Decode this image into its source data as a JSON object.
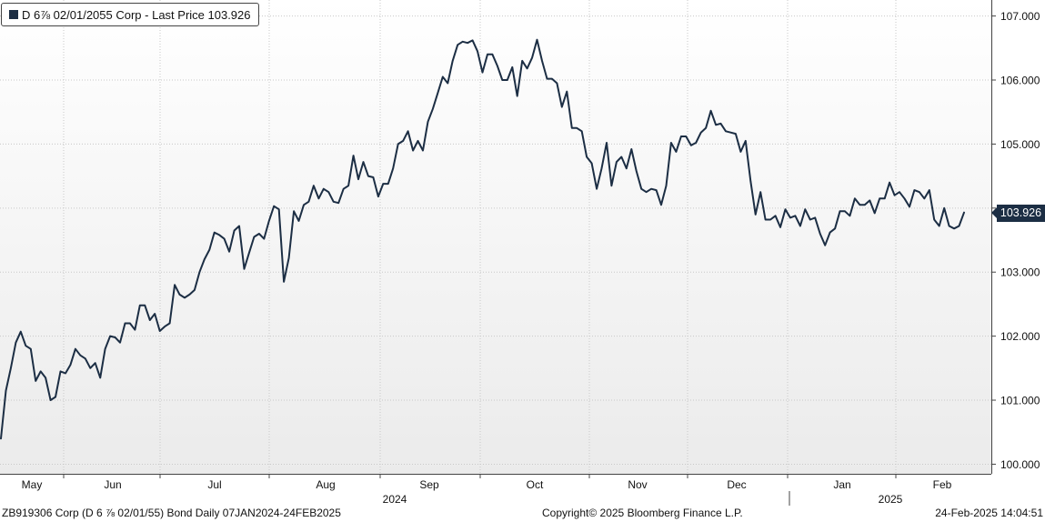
{
  "legend": {
    "text": "D 6⅞ 02/01/2055 Corp - Last Price 103.926",
    "color": "#1c2e44"
  },
  "footer": {
    "left": "ZB919306 Corp (D 6 ⅞ 02/01/55) Bond  Daily 07JAN2024-24FEB2025",
    "center": "Copyright© 2025 Bloomberg Finance L.P.",
    "right": "24-Feb-2025 14:04:51"
  },
  "chart_data": {
    "type": "line",
    "title": "",
    "xlabel": "",
    "ylabel": "",
    "ylim": [
      99.85,
      107.25
    ],
    "yticks": [
      "100.000",
      "101.000",
      "102.000",
      "103.000",
      "104.000",
      "105.000",
      "106.000",
      "107.000"
    ],
    "x_month_labels": [
      "May",
      "Jun",
      "Jul",
      "Aug",
      "Sep",
      "Oct",
      "Nov",
      "Dec",
      "Jan",
      "Feb"
    ],
    "x_year_labels": [
      "2024",
      "2025"
    ],
    "grid": true,
    "line_color": "#1c2e44",
    "last_price": "103.926",
    "series": [
      {
        "values": [
          100.4,
          101.15,
          101.5,
          101.9,
          102.07,
          101.85,
          101.8,
          101.3,
          101.45,
          101.35,
          101.0,
          101.05,
          101.45,
          101.42,
          101.55,
          101.8,
          101.7,
          101.65,
          101.5,
          101.58,
          101.35,
          101.8,
          102.0,
          101.98,
          101.9,
          102.2,
          102.2,
          102.1,
          102.48,
          102.48,
          102.25,
          102.35,
          102.08,
          102.15,
          102.2,
          102.8,
          102.65,
          102.6,
          102.65,
          102.72,
          103.0,
          103.2,
          103.35,
          103.62,
          103.58,
          103.52,
          103.32,
          103.65,
          103.72,
          103.05,
          103.3,
          103.55,
          103.6,
          103.52,
          103.8,
          104.03,
          103.98,
          102.85,
          103.22,
          103.95,
          103.8,
          104.05,
          104.1,
          104.35,
          104.15,
          104.3,
          104.25,
          104.1,
          104.08,
          104.3,
          104.35,
          104.82,
          104.45,
          104.72,
          104.5,
          104.48,
          104.18,
          104.38,
          104.38,
          104.62,
          105.0,
          105.05,
          105.2,
          104.9,
          105.05,
          104.9,
          105.35,
          105.55,
          105.8,
          106.05,
          105.95,
          106.3,
          106.55,
          106.6,
          106.58,
          106.62,
          106.45,
          106.12,
          106.4,
          106.4,
          106.22,
          106.0,
          106.0,
          106.2,
          105.75,
          106.3,
          106.18,
          106.35,
          106.63,
          106.3,
          106.02,
          106.02,
          105.95,
          105.58,
          105.82,
          105.25,
          105.25,
          105.2,
          104.8,
          104.7,
          104.3,
          104.62,
          105.02,
          104.35,
          104.72,
          104.8,
          104.62,
          104.92,
          104.58,
          104.3,
          104.25,
          104.3,
          104.28,
          104.05,
          104.35,
          105.02,
          104.88,
          105.12,
          105.12,
          104.98,
          105.02,
          105.18,
          105.25,
          105.52,
          105.3,
          105.32,
          105.2,
          105.18,
          105.16,
          104.88,
          105.05,
          104.42,
          103.9,
          104.25,
          103.82,
          103.82,
          103.88,
          103.7,
          103.98,
          103.85,
          103.88,
          103.72,
          103.98,
          103.82,
          103.85,
          103.6,
          103.42,
          103.62,
          103.68,
          103.95,
          103.95,
          103.88,
          104.15,
          104.05,
          104.05,
          104.12,
          103.92,
          104.15,
          104.15,
          104.4,
          104.2,
          104.25,
          104.15,
          104.02,
          104.28,
          104.25,
          104.15,
          104.28,
          103.82,
          103.72,
          104.0,
          103.72,
          103.68,
          103.72,
          103.93
        ]
      }
    ]
  }
}
